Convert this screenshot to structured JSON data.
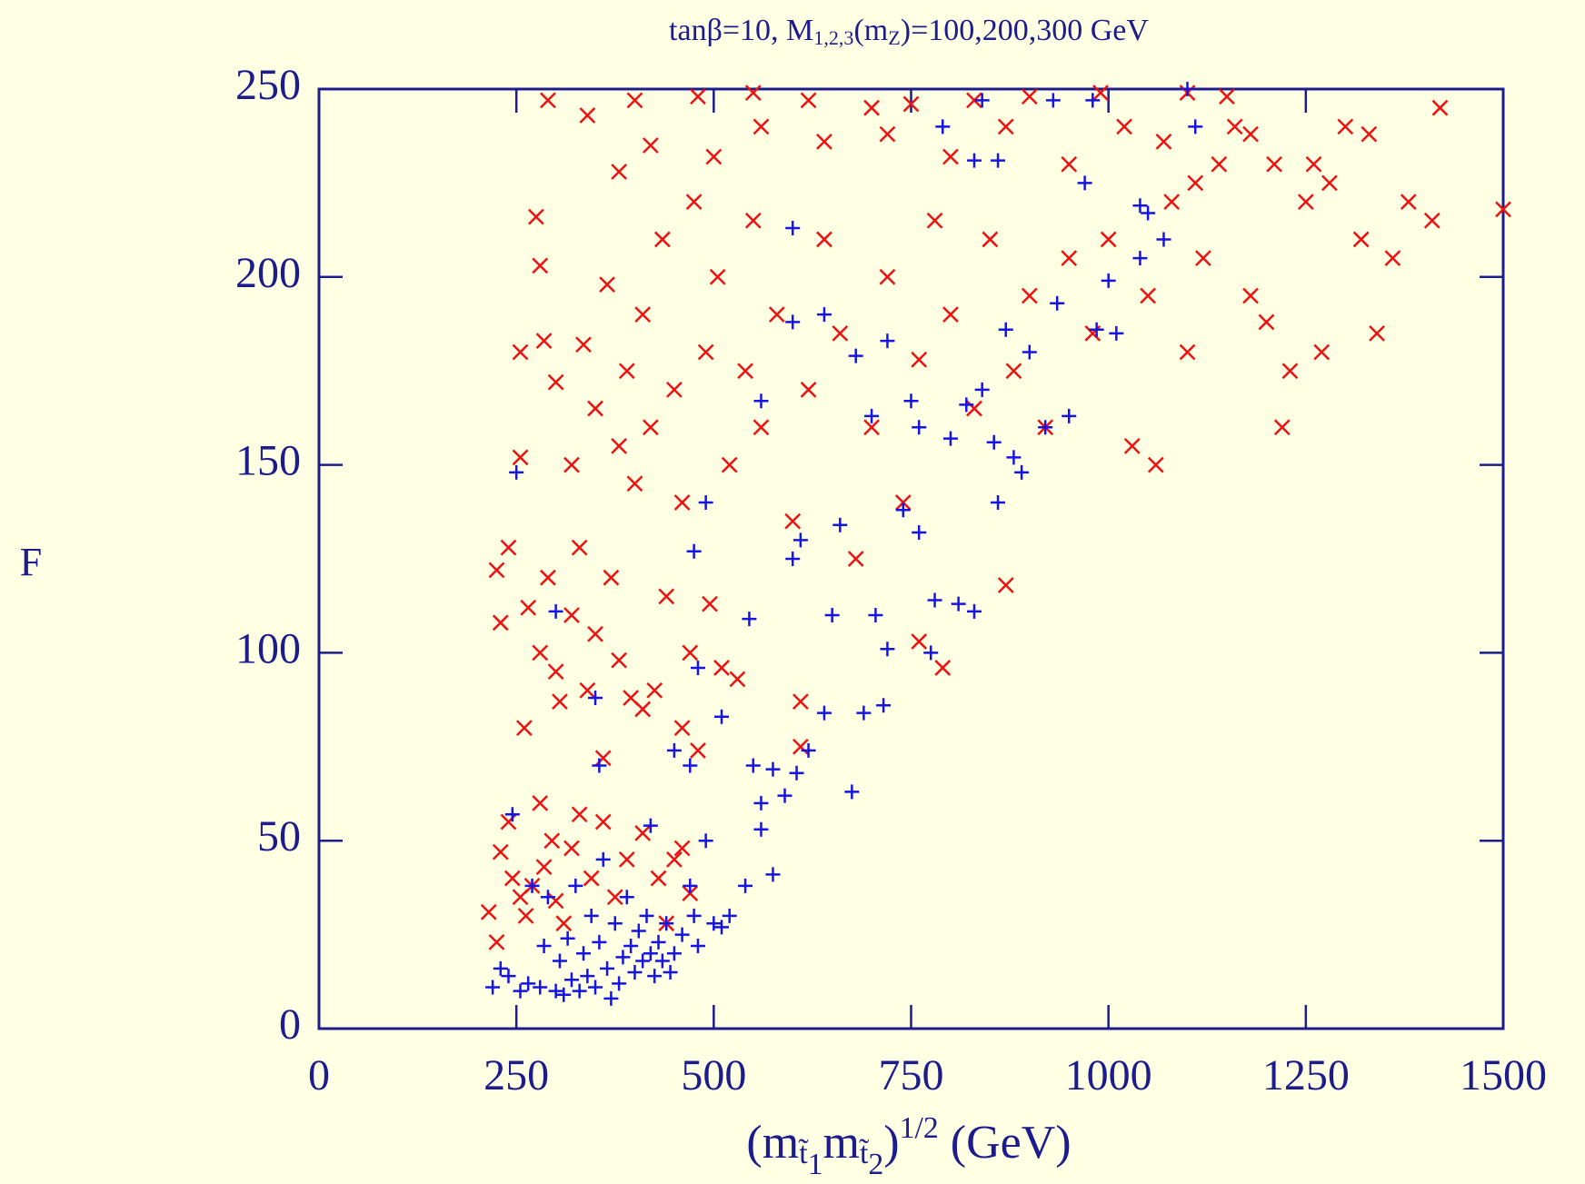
{
  "chart_data": {
    "type": "scatter",
    "title": [
      "tanβ=10,  M",
      "1,2,3",
      "(m",
      "Z",
      ")=100,200,300  GeV"
    ],
    "y_label": "F",
    "x_label": [
      "(m",
      "t̃",
      "1",
      "m",
      "t̃",
      "2",
      ")",
      "1/2",
      " (GeV)"
    ],
    "xlim": [
      0,
      1500
    ],
    "xticks": [
      0,
      250,
      500,
      750,
      1000,
      1250,
      1500
    ],
    "ylim": [
      0,
      250
    ],
    "yticks": [
      0,
      50,
      100,
      150,
      200,
      250
    ],
    "series": [
      {
        "color": "#ee1111",
        "marker": "x",
        "x": [
          215,
          225,
          230,
          240,
          245,
          255,
          262,
          270,
          280,
          285,
          295,
          300,
          310,
          320,
          330,
          345,
          360,
          375,
          390,
          410,
          430,
          450,
          440,
          470,
          460,
          225,
          230,
          240,
          255,
          260,
          265,
          280,
          290,
          300,
          305,
          320,
          330,
          340,
          350,
          360,
          370,
          380,
          395,
          410,
          425,
          440,
          460,
          470,
          480,
          495,
          510,
          530,
          610,
          610,
          255,
          275,
          280,
          285,
          300,
          320,
          335,
          350,
          365,
          380,
          390,
          400,
          410,
          420,
          435,
          450,
          460,
          475,
          490,
          505,
          520,
          540,
          550,
          560,
          580,
          600,
          620,
          640,
          660,
          680,
          700,
          720,
          740,
          760,
          780,
          790,
          800,
          830,
          850,
          870,
          880,
          900,
          920,
          950,
          980,
          1000,
          1030,
          1060,
          1050,
          1080,
          1100,
          1120,
          1140,
          1160,
          1180,
          1200,
          1220,
          1210,
          1230,
          1250,
          1270,
          1300,
          1320,
          1340,
          1360,
          1380,
          1410,
          1500,
          1420,
          1150,
          1100,
          990,
          900,
          830,
          750,
          700,
          620,
          550,
          480,
          400,
          290,
          340,
          380,
          420,
          500,
          560,
          640,
          720,
          800,
          870,
          950,
          1020,
          1070,
          1110,
          1180,
          1260,
          1330,
          1280,
          760
        ],
        "values": [
          31,
          23,
          47,
          55,
          40,
          35,
          30,
          38,
          60,
          43,
          50,
          34,
          28,
          48,
          57,
          40,
          55,
          35,
          45,
          52,
          40,
          45,
          28,
          36,
          48,
          122,
          108,
          128,
          152,
          80,
          112,
          100,
          120,
          95,
          87,
          110,
          128,
          90,
          105,
          72,
          120,
          98,
          88,
          85,
          90,
          115,
          80,
          100,
          74,
          113,
          96,
          93,
          75,
          87,
          180,
          216,
          203,
          183,
          172,
          150,
          182,
          165,
          198,
          155,
          175,
          145,
          190,
          160,
          210,
          170,
          140,
          220,
          180,
          200,
          150,
          175,
          215,
          160,
          190,
          135,
          170,
          210,
          185,
          125,
          160,
          200,
          140,
          178,
          215,
          96,
          190,
          165,
          210,
          118,
          175,
          195,
          160,
          205,
          185,
          210,
          155,
          150,
          195,
          220,
          180,
          205,
          230,
          240,
          195,
          188,
          160,
          230,
          175,
          220,
          180,
          240,
          210,
          185,
          205,
          220,
          215,
          218,
          245,
          248,
          249,
          249,
          248,
          247,
          246,
          245,
          247,
          249,
          248,
          247,
          247,
          243,
          228,
          235,
          232,
          240,
          236,
          238,
          232,
          240,
          230,
          240,
          236,
          225,
          238,
          230,
          238,
          225,
          103
        ]
      },
      {
        "color": "#1414e6",
        "marker": "+",
        "x": [
          220,
          230,
          240,
          245,
          255,
          265,
          270,
          280,
          285,
          290,
          300,
          305,
          310,
          315,
          320,
          325,
          330,
          335,
          340,
          345,
          350,
          355,
          360,
          365,
          370,
          375,
          380,
          385,
          390,
          395,
          400,
          405,
          410,
          415,
          420,
          425,
          430,
          435,
          440,
          445,
          450,
          460,
          470,
          475,
          480,
          490,
          500,
          510,
          520,
          540,
          560,
          575,
          250,
          300,
          350,
          355,
          420,
          450,
          470,
          480,
          490,
          475,
          510,
          545,
          550,
          560,
          575,
          590,
          600,
          605,
          610,
          620,
          640,
          650,
          660,
          675,
          690,
          700,
          705,
          715,
          720,
          740,
          750,
          760,
          775,
          780,
          800,
          810,
          820,
          830,
          840,
          855,
          860,
          870,
          880,
          890,
          900,
          920,
          935,
          950,
          970,
          985,
          1000,
          1010,
          1050,
          1070,
          1040,
          720,
          600,
          640,
          560,
          600,
          680,
          760,
          830,
          860,
          790,
          840,
          930,
          980,
          1100,
          1110,
          1040
        ],
        "values": [
          11,
          16,
          14,
          57,
          10,
          12,
          38,
          11,
          22,
          35,
          10,
          18,
          9,
          24,
          13,
          38,
          10,
          20,
          14,
          30,
          11,
          23,
          45,
          16,
          8,
          28,
          12,
          19,
          35,
          22,
          15,
          26,
          18,
          30,
          20,
          14,
          23,
          18,
          28,
          15,
          20,
          25,
          38,
          30,
          22,
          50,
          28,
          27,
          30,
          38,
          53,
          41,
          148,
          111,
          88,
          70,
          54,
          74,
          70,
          96,
          140,
          127,
          83,
          109,
          70,
          60,
          69,
          62,
          125,
          68,
          130,
          74,
          84,
          110,
          134,
          63,
          84,
          163,
          110,
          86,
          101,
          138,
          167,
          132,
          100,
          114,
          157,
          113,
          166,
          111,
          170,
          156,
          140,
          186,
          152,
          148,
          180,
          160,
          193,
          163,
          225,
          186,
          199,
          185,
          217,
          210,
          205,
          183,
          213,
          190,
          167,
          188,
          179,
          160,
          231,
          231,
          240,
          247,
          247,
          247,
          250,
          240,
          219
        ]
      }
    ]
  }
}
